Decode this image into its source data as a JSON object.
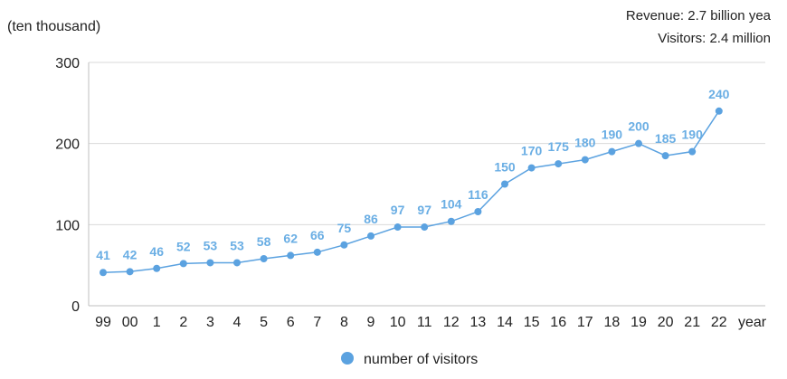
{
  "chart_data": {
    "type": "line",
    "unit_label": "(ten thousand)",
    "notes": [
      "Revenue: 2.7 billion yea",
      "Visitors: 2.4 million"
    ],
    "xlabel": "year",
    "ylabel": "",
    "categories": [
      "99",
      "00",
      "1",
      "2",
      "3",
      "4",
      "5",
      "6",
      "7",
      "8",
      "9",
      "10",
      "11",
      "12",
      "13",
      "14",
      "15",
      "16",
      "17",
      "18",
      "19",
      "20",
      "21",
      "22"
    ],
    "series": [
      {
        "name": "number of visitors",
        "values": [
          41,
          42,
          46,
          52,
          53,
          53,
          58,
          62,
          66,
          75,
          86,
          97,
          97,
          104,
          116,
          150,
          170,
          175,
          180,
          190,
          200,
          185,
          190,
          240
        ],
        "labels": [
          "41",
          "42",
          "46",
          "52",
          "53",
          "53",
          "58",
          "62",
          "66",
          "75",
          "86",
          "97",
          "97",
          "104",
          "116",
          "150",
          "170",
          "175",
          "180",
          "190",
          "200",
          "185",
          "190",
          "240"
        ],
        "color": "#5ba2e0"
      }
    ],
    "ylim": [
      0,
      300
    ],
    "yticks": [
      "0",
      "100",
      "200",
      "300"
    ],
    "grid": true,
    "legend_position": "bottom-center",
    "colors": {
      "line": "#5ba2e0",
      "label": "#6aaee4",
      "grid": "#d9d9d9",
      "axis": "#bfbfbf"
    }
  }
}
